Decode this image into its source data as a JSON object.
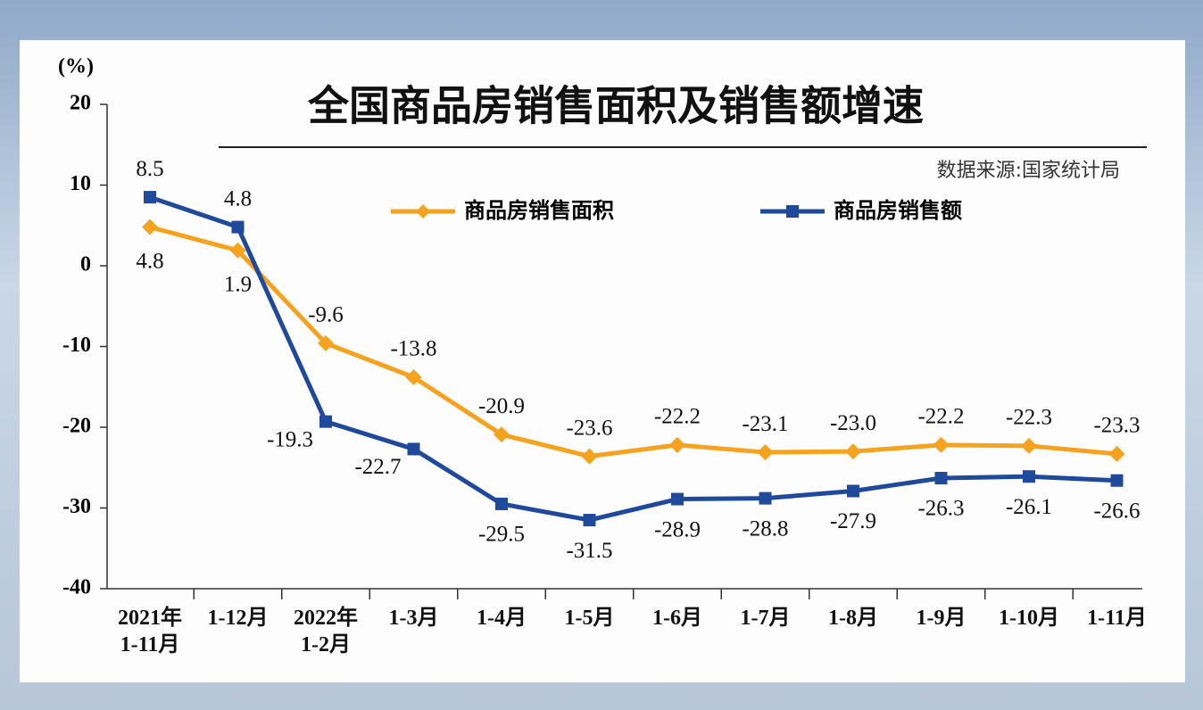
{
  "chart_data": {
    "type": "line",
    "title": "全国商品房销售面积及销售额增速",
    "subtitle": "数据来源:国家统计局",
    "y_label": "(%)",
    "categories": [
      "2021年\n1-11月",
      "1-12月",
      "2022年\n1-2月",
      "1-3月",
      "1-4月",
      "1-5月",
      "1-6月",
      "1-7月",
      "1-8月",
      "1-9月",
      "1-10月",
      "1-11月"
    ],
    "series": [
      {
        "name": "商品房销售面积",
        "color": "#f5a31f",
        "values": [
          4.8,
          1.9,
          -9.6,
          -13.8,
          -20.9,
          -23.6,
          -22.2,
          -23.1,
          -23.0,
          -22.2,
          -22.3,
          -23.3
        ],
        "value_labels": [
          "4.8",
          "1.9",
          "-9.6",
          "-13.8",
          "-20.9",
          "-23.6",
          "-22.2",
          "-23.1",
          "-23.0",
          "-22.2",
          "-22.3",
          "-23.3"
        ]
      },
      {
        "name": "商品房销售额",
        "color": "#1f4a9c",
        "values": [
          8.5,
          4.8,
          -19.3,
          -22.7,
          -29.5,
          -31.5,
          -28.9,
          -28.8,
          -27.9,
          -26.3,
          -26.1,
          -26.6
        ],
        "value_labels": [
          "8.5",
          "4.8",
          "-19.3",
          "-22.7",
          "-29.5",
          "-31.5",
          "-28.9",
          "-28.8",
          "-27.9",
          "-26.3",
          "-26.1",
          "-26.6"
        ]
      }
    ],
    "ylim": [
      -40,
      20
    ],
    "yticks": [
      -40,
      -30,
      -20,
      -10,
      0,
      10,
      20
    ]
  }
}
